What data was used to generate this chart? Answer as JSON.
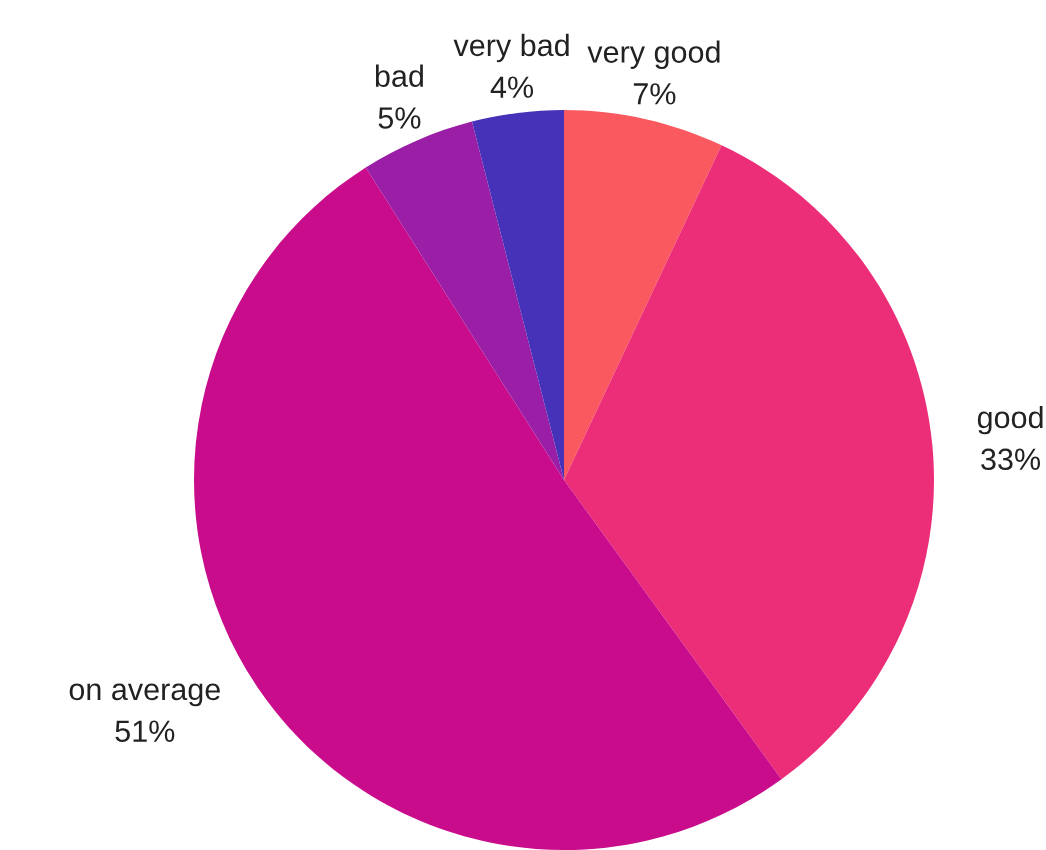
{
  "chart_data": {
    "type": "pie",
    "categories": [
      "very good",
      "good",
      "on average",
      "bad",
      "very bad"
    ],
    "values": [
      7,
      33,
      51,
      5,
      4
    ],
    "colors": [
      "#f9595f",
      "#ec2d78",
      "#c90c8c",
      "#9a1fa6",
      "#4532b8"
    ],
    "value_labels": [
      "7%",
      "33%",
      "51%",
      "5%",
      "4%"
    ]
  }
}
